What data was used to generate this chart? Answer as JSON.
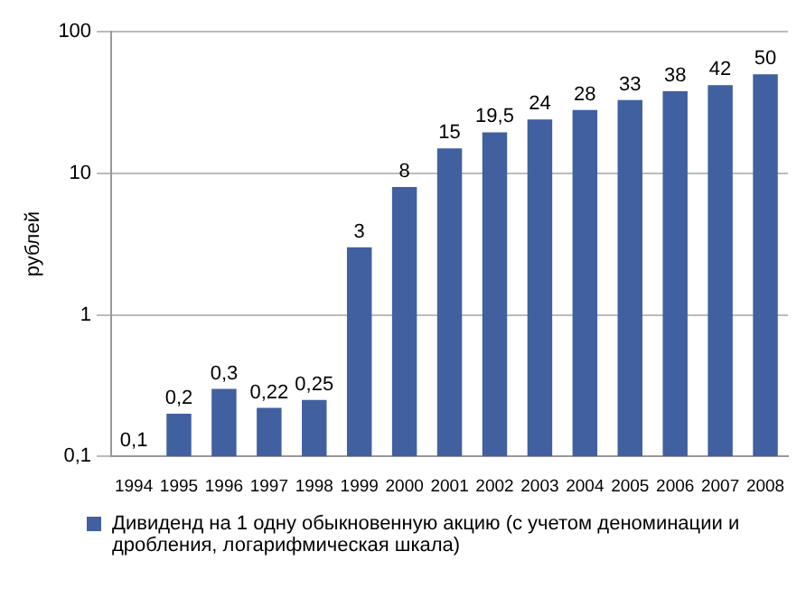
{
  "chart_data": {
    "type": "bar",
    "ylabel": "рублей",
    "categories": [
      "1994",
      "1995",
      "1996",
      "1997",
      "1998",
      "1999",
      "2000",
      "2001",
      "2002",
      "2003",
      "2004",
      "2005",
      "2006",
      "2007",
      "2008"
    ],
    "series": [
      {
        "name": "Дивиденд на 1 одну обыкновенную акцию (с учетом деноминации и дробления, логарифмическая шкала)",
        "color": "#40609f",
        "values": [
          0.1,
          0.2,
          0.3,
          0.22,
          0.25,
          3,
          8,
          15,
          19.5,
          24,
          28,
          33,
          38,
          42,
          50
        ],
        "value_labels": [
          "0,1",
          "0,2",
          "0,3",
          "0,22",
          "0,25",
          "3",
          "8",
          "15",
          "19,5",
          "24",
          "28",
          "33",
          "38",
          "42",
          "50"
        ]
      }
    ],
    "log": "y",
    "ylim": [
      0.1,
      100
    ],
    "yticks": [
      {
        "value": 0.1,
        "label": "0,1"
      },
      1,
      10,
      100
    ],
    "grid": "y",
    "legend": "bottom"
  }
}
